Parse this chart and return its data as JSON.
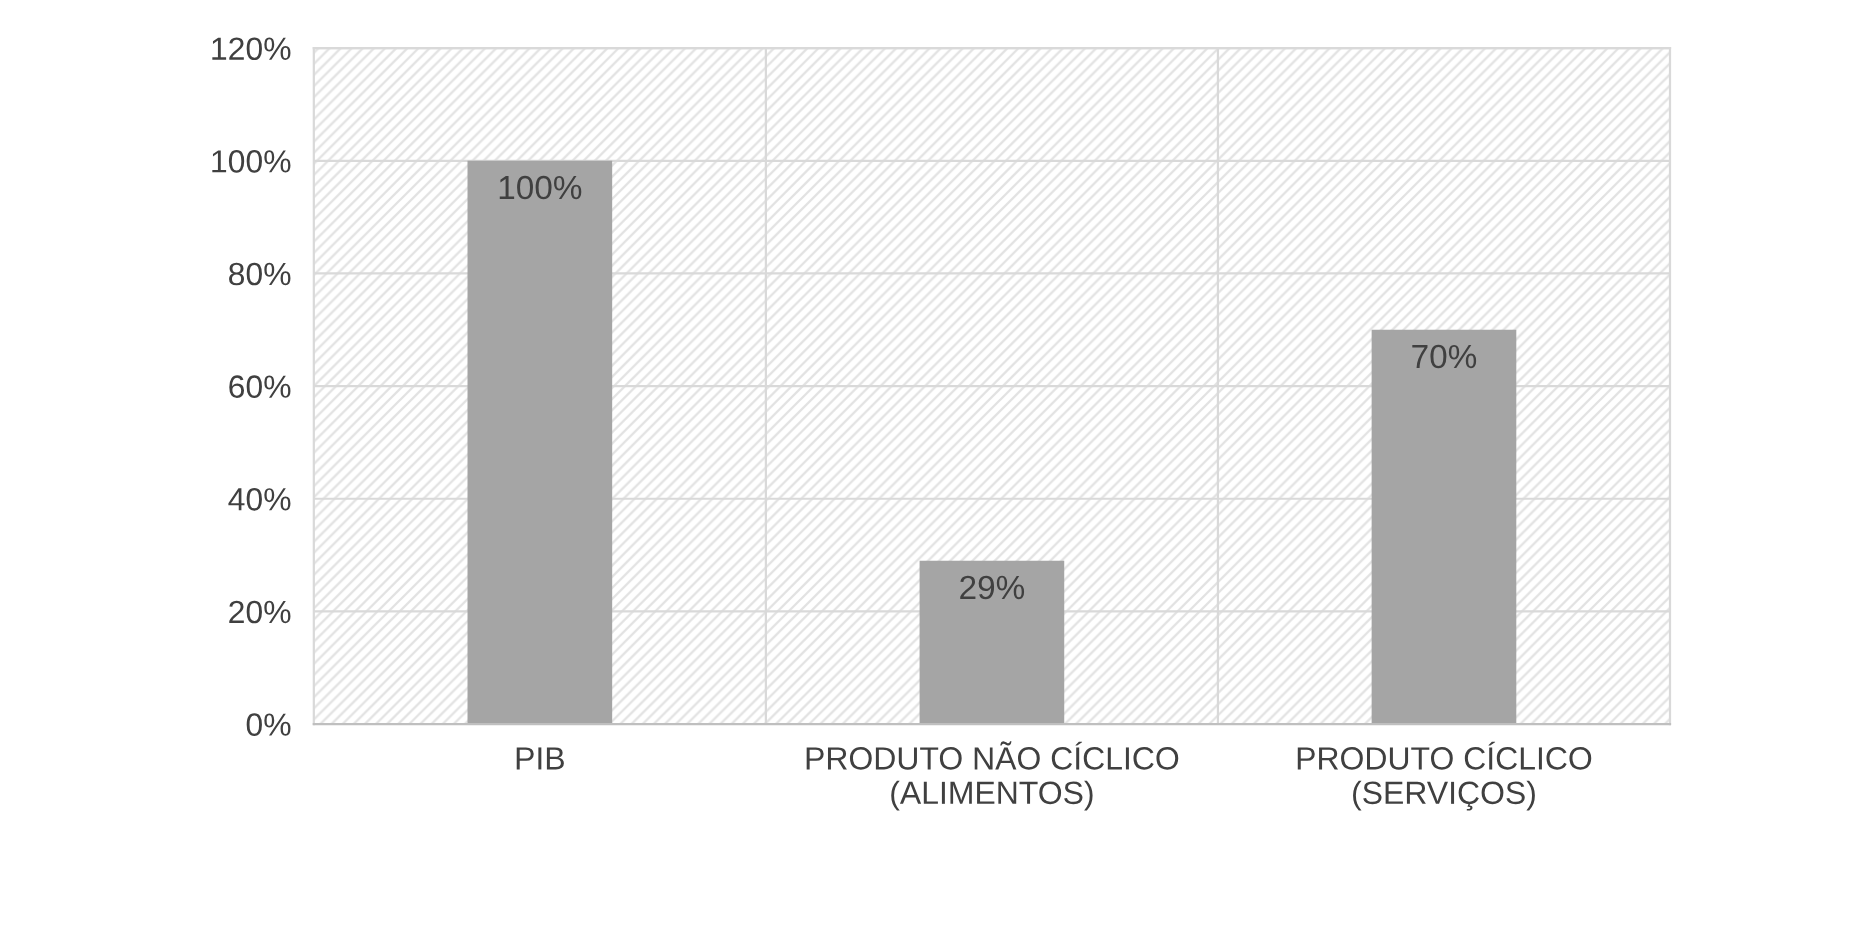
{
  "chart_data": {
    "type": "bar",
    "categories": [
      "PIB",
      "PRODUTO NÃO CÍCLICO\n(ALIMENTOS)",
      "PRODUTO CÍCLICO\n(SERVIÇOS)"
    ],
    "values": [
      100,
      29,
      70
    ],
    "value_labels": [
      "100%",
      "29%",
      "70%"
    ],
    "color": "#a5a5a5",
    "ylim": [
      0,
      120
    ],
    "yticks": [
      {
        "value": 0,
        "label": "0%"
      },
      {
        "value": 20,
        "label": "20%"
      },
      {
        "value": 40,
        "label": "40%"
      },
      {
        "value": 60,
        "label": "60%"
      },
      {
        "value": 80,
        "label": "80%"
      },
      {
        "value": 100,
        "label": "100%"
      },
      {
        "value": 120,
        "label": "120%"
      }
    ],
    "grid": true
  }
}
